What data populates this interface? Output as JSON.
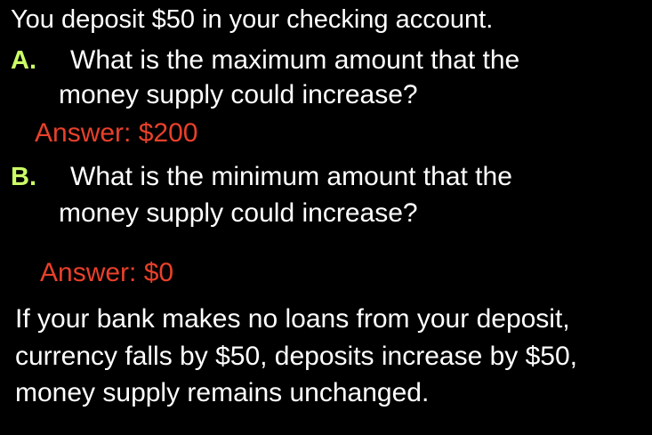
{
  "intro": "You deposit $50 in your checking account.",
  "question_a": {
    "letter": "A.",
    "line1": "What is the maximum amount that the",
    "line2": "money supply could increase?",
    "answer": "Answer:  $200"
  },
  "question_b": {
    "letter": "B.",
    "line1": "What is the minimum amount that the",
    "line2": "money supply could increase?",
    "answer": "Answer:  $0"
  },
  "explanation": {
    "line1": "If your bank makes no loans from your deposit,",
    "line2": "currency falls by $50, deposits increase by $50,",
    "line3": "money supply remains unchanged."
  },
  "colors": {
    "background": "#000000",
    "text": "#ffffff",
    "letter": "#ccff66",
    "answer": "#e8402a"
  }
}
